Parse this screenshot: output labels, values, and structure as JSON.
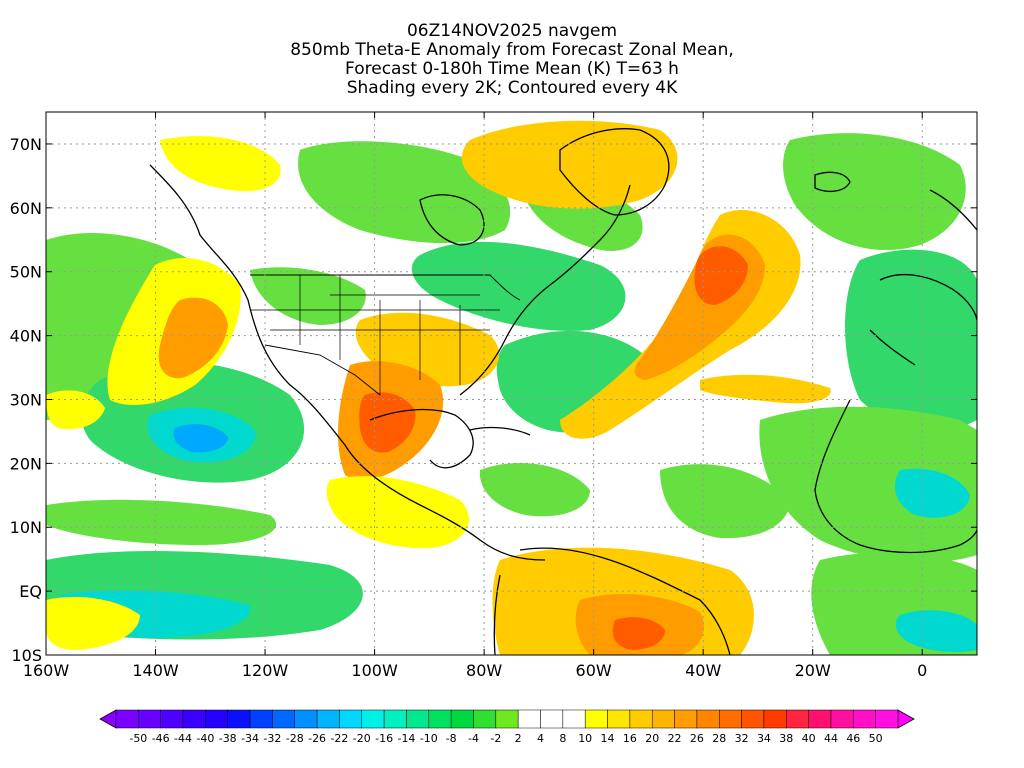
{
  "title": {
    "line1": "06Z14NOV2025 navgem",
    "line2": "850mb Theta-E Anomaly from Forecast Zonal Mean,",
    "line3": "Forecast 0-180h Time Mean (K) T=63 h",
    "line4": "Shading every 2K; Contoured every 4K"
  },
  "axes": {
    "lon_range": [
      -160,
      10
    ],
    "lat_range": [
      -10,
      75
    ],
    "x_ticks": [
      {
        "value": -160,
        "label": "160W"
      },
      {
        "value": -140,
        "label": "140W"
      },
      {
        "value": -120,
        "label": "120W"
      },
      {
        "value": -100,
        "label": "100W"
      },
      {
        "value": -80,
        "label": "80W"
      },
      {
        "value": -60,
        "label": "60W"
      },
      {
        "value": -40,
        "label": "40W"
      },
      {
        "value": -20,
        "label": "20W"
      },
      {
        "value": 0,
        "label": "0"
      }
    ],
    "y_ticks": [
      {
        "value": -10,
        "label": "10S"
      },
      {
        "value": 0,
        "label": "EQ"
      },
      {
        "value": 10,
        "label": "10N"
      },
      {
        "value": 20,
        "label": "20N"
      },
      {
        "value": 30,
        "label": "30N"
      },
      {
        "value": 40,
        "label": "40N"
      },
      {
        "value": 50,
        "label": "50N"
      },
      {
        "value": 60,
        "label": "60N"
      },
      {
        "value": 70,
        "label": "70N"
      }
    ],
    "gridlines": true
  },
  "colorbar": {
    "labels": [
      "-50",
      "-46",
      "-44",
      "-40",
      "-38",
      "-34",
      "-32",
      "-28",
      "-26",
      "-22",
      "-20",
      "-16",
      "-14",
      "-10",
      "-8",
      "-4",
      "-2",
      "2",
      "4",
      "8",
      "10",
      "14",
      "16",
      "20",
      "22",
      "26",
      "28",
      "32",
      "34",
      "38",
      "40",
      "44",
      "46",
      "50"
    ],
    "colors": [
      "#7b00ff",
      "#6600ff",
      "#5000ff",
      "#3a00ff",
      "#2400ff",
      "#0a10ff",
      "#0040ff",
      "#0068ff",
      "#0090ff",
      "#00b4ff",
      "#00d8ff",
      "#00f0e8",
      "#00f0c0",
      "#00e890",
      "#00e060",
      "#00d840",
      "#30e030",
      "#70e820",
      "#ffffff",
      "#ffffff",
      "#ffffff",
      "#ffff00",
      "#ffe600",
      "#ffcc00",
      "#ffb400",
      "#ff9c00",
      "#ff8400",
      "#ff6c00",
      "#ff5400",
      "#ff3c00",
      "#ff2440",
      "#ff1070",
      "#ff10a0",
      "#ff10c8",
      "#ff10e0"
    ],
    "under_color": "#8800ff",
    "over_color": "#ff00ff"
  },
  "colors": {
    "cool_light": "#66e040",
    "cool_mid": "#33d86a",
    "cool_strong": "#00d8d0",
    "cool_max": "#00a8ff",
    "warm_light": "#ffff00",
    "warm_mid": "#ffcc00",
    "warm_strong": "#ff9c00",
    "warm_max": "#ff5c00"
  }
}
